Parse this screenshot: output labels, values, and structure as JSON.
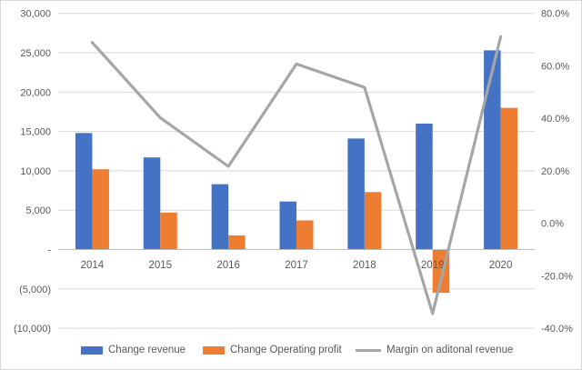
{
  "chart_data": {
    "type": "combo-bar-line",
    "title": "",
    "categories": [
      "2014",
      "2015",
      "2016",
      "2017",
      "2018",
      "2019",
      "2020"
    ],
    "series": [
      {
        "name": "Change revenue",
        "type": "bar",
        "axis": "left",
        "color": "#4472C4",
        "values": [
          14800,
          11700,
          8300,
          6100,
          14100,
          16000,
          25300
        ]
      },
      {
        "name": "Change Operating profit",
        "type": "bar",
        "axis": "left",
        "color": "#ED7D31",
        "values": [
          10200,
          4700,
          1800,
          3700,
          7300,
          -5500,
          18000
        ]
      },
      {
        "name": "Margin on aditonal revenue",
        "type": "line",
        "axis": "right",
        "color": "#A6A6A6",
        "unit": "%",
        "values": [
          68.9,
          40.2,
          21.7,
          60.7,
          51.8,
          -34.4,
          71.1
        ]
      }
    ],
    "left_axis": {
      "labels": [
        "30,000",
        "25,000",
        "20,000",
        "15,000",
        "10,000",
        "5,000",
        "-",
        "(5,000)",
        "(10,000)"
      ],
      "tick_values": [
        30000,
        25000,
        20000,
        15000,
        10000,
        5000,
        0,
        -5000,
        -10000
      ],
      "min": -10000,
      "max": 30000
    },
    "right_axis": {
      "labels": [
        "80.0%",
        "60.0%",
        "40.0%",
        "20.0%",
        "0.0%",
        "-20.0%",
        "-40.0%"
      ],
      "tick_values": [
        80,
        60,
        40,
        20,
        0,
        -20,
        -40
      ],
      "min": -40,
      "max": 80
    },
    "grid": true,
    "legend_position": "bottom",
    "colors": {
      "gridline": "#D9D9D9",
      "axis_line": "#BFBFBF",
      "tick_text": "#595959",
      "background": "#FFFFFF",
      "border": "#D9D9D9"
    }
  }
}
